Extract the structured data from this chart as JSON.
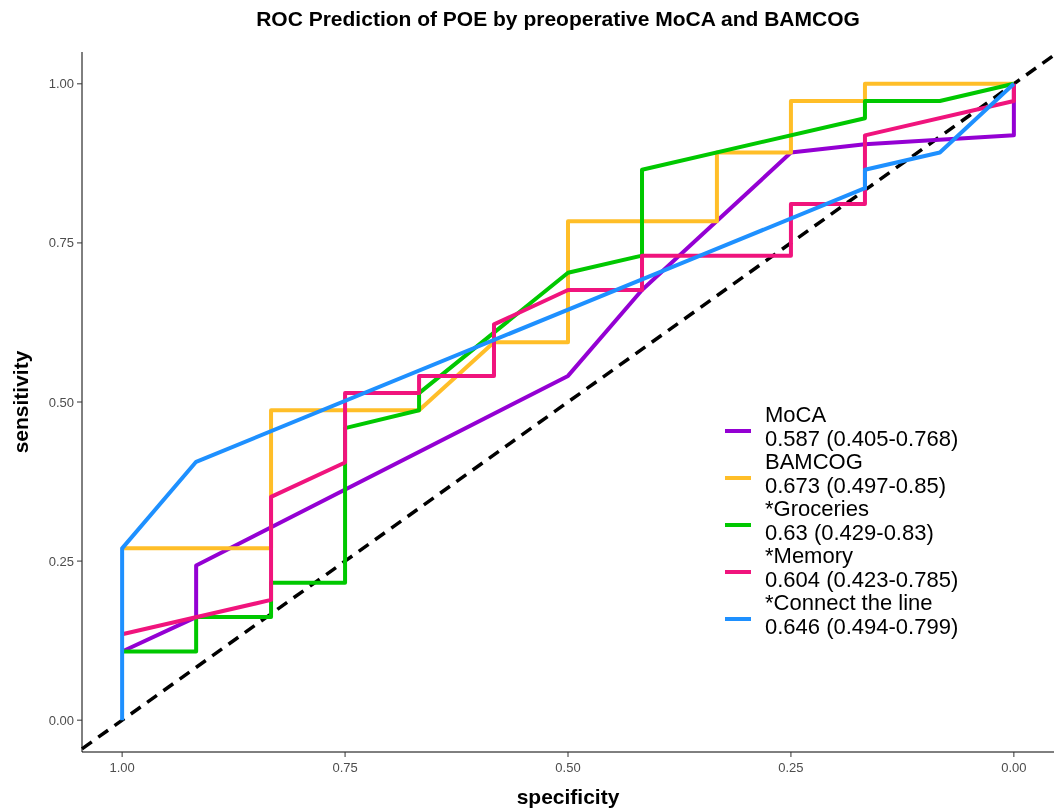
{
  "chart_data": {
    "type": "line",
    "title": "ROC Prediction of POE by preoperative MoCA and BAMCOG",
    "xlabel": "specificity",
    "ylabel": "sensitivity",
    "xlim": [
      1.045,
      -0.045
    ],
    "ylim": [
      -0.05,
      1.05
    ],
    "xticks": [
      {
        "value": 1,
        "label": "1.00"
      },
      {
        "value": 0.75,
        "label": "0.75"
      },
      {
        "value": 0.5,
        "label": "0.50"
      },
      {
        "value": 0.25,
        "label": "0.25"
      },
      {
        "value": 0,
        "label": "0.00"
      }
    ],
    "yticks": [
      {
        "value": 0,
        "label": "0.00"
      },
      {
        "value": 0.25,
        "label": "0.25"
      },
      {
        "value": 0.5,
        "label": "0.50"
      },
      {
        "value": 0.75,
        "label": "0.75"
      },
      {
        "value": 1,
        "label": "1.00"
      }
    ],
    "grid": false,
    "legend": "bottom right",
    "marker": "none",
    "line_style": "solid",
    "series": [
      {
        "type": "line",
        "color": "#000000",
        "line_style": "dashed",
        "x": [
          1.045,
          -0.045
        ],
        "values": [
          -0.045,
          1.045
        ]
      },
      {
        "name": "MoCA\n0.587 (0.405-0.768)",
        "color": "#9400d3",
        "x": [
          1,
          0.917,
          0.917,
          0.5,
          0.417,
          0.25,
          0.167,
          0,
          0
        ],
        "values": [
          0.108,
          0.162,
          0.243,
          0.541,
          0.676,
          0.892,
          0.905,
          0.919,
          1
        ]
      },
      {
        "name": "BAMCOG\n0.673 (0.497-0.85)",
        "color": "#ffbe28",
        "x": [
          1,
          0.833,
          0.833,
          0.667,
          0.583,
          0.5,
          0.5,
          0.333,
          0.333,
          0.25,
          0.25,
          0.167,
          0.167,
          0
        ],
        "values": [
          0.27,
          0.27,
          0.487,
          0.487,
          0.594,
          0.594,
          0.784,
          0.784,
          0.892,
          0.892,
          0.973,
          0.973,
          1,
          1
        ]
      },
      {
        "name": "*Groceries\n0.63 (0.429-0.83)",
        "color": "#00c800",
        "x": [
          1,
          0.917,
          0.917,
          0.833,
          0.833,
          0.75,
          0.75,
          0.667,
          0.667,
          0.5,
          0.417,
          0.417,
          0.167,
          0.167,
          0.083,
          0
        ],
        "values": [
          0.108,
          0.108,
          0.162,
          0.162,
          0.216,
          0.216,
          0.459,
          0.487,
          0.514,
          0.703,
          0.73,
          0.865,
          0.946,
          0.973,
          0.973,
          1
        ]
      },
      {
        "name": "*Memory\n0.604 (0.423-0.785)",
        "color": "#f0147d",
        "x": [
          1,
          0.833,
          0.833,
          0.75,
          0.75,
          0.667,
          0.667,
          0.583,
          0.583,
          0.5,
          0.417,
          0.417,
          0.25,
          0.25,
          0.167,
          0.167,
          0,
          0
        ],
        "values": [
          0.135,
          0.189,
          0.351,
          0.405,
          0.514,
          0.514,
          0.541,
          0.541,
          0.622,
          0.676,
          0.676,
          0.73,
          0.73,
          0.811,
          0.811,
          0.919,
          0.973,
          1
        ]
      },
      {
        "name": "*Connect the line\n0.646 (0.494-0.799)",
        "color": "#1e90ff",
        "x": [
          1,
          1,
          0.917,
          0.167,
          0.167,
          0.083,
          0
        ],
        "values": [
          0,
          0.27,
          0.406,
          0.836,
          0.865,
          0.892,
          1
        ]
      }
    ]
  }
}
